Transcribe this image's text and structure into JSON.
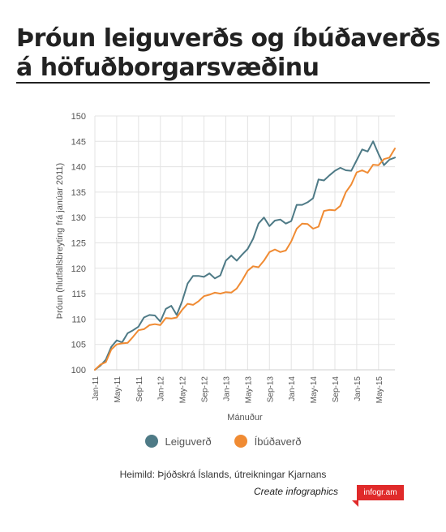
{
  "title": {
    "line1": "Þróun leiguverðs og íbúðaverðs",
    "line2": "á höfuðborgarsvæðinu"
  },
  "chart_data": {
    "type": "line",
    "xlabel": "Mánuður",
    "ylabel": "Þróun (hlutfallsbreyting frá janúar 2011)",
    "ylim": [
      100,
      150
    ],
    "yticks": [
      "100",
      "105",
      "110",
      "115",
      "120",
      "125",
      "130",
      "135",
      "140",
      "145",
      "150"
    ],
    "xticks": [
      {
        "index": 0,
        "label": "Jan-11"
      },
      {
        "index": 4,
        "label": "May-11"
      },
      {
        "index": 8,
        "label": "Sep-11"
      },
      {
        "index": 12,
        "label": "Jan-12"
      },
      {
        "index": 16,
        "label": "May-12"
      },
      {
        "index": 20,
        "label": "Sep-12"
      },
      {
        "index": 24,
        "label": "Jan-13"
      },
      {
        "index": 28,
        "label": "May-13"
      },
      {
        "index": 32,
        "label": "Sep-13"
      },
      {
        "index": 36,
        "label": "Jan-14"
      },
      {
        "index": 40,
        "label": "May-14"
      },
      {
        "index": 44,
        "label": "Sep-14"
      },
      {
        "index": 48,
        "label": "Jan-15"
      },
      {
        "index": 52,
        "label": "May-15"
      }
    ],
    "grid": true,
    "legend_position": "bottom",
    "series": [
      {
        "name": "Leiguverð",
        "color": "#4e7a86",
        "values": [
          100.0,
          100.8,
          102.0,
          104.5,
          105.8,
          105.4,
          107.2,
          107.8,
          108.5,
          110.3,
          110.8,
          110.7,
          109.5,
          112.0,
          112.6,
          110.8,
          113.5,
          117.0,
          118.5,
          118.5,
          118.3,
          119.0,
          118.0,
          118.6,
          121.5,
          122.5,
          121.5,
          122.7,
          123.8,
          125.8,
          128.8,
          130.0,
          128.3,
          129.4,
          129.6,
          128.8,
          129.3,
          132.5,
          132.5,
          133.0,
          133.8,
          137.5,
          137.3,
          138.3,
          139.2,
          139.8,
          139.3,
          139.2,
          141.3,
          143.4,
          143.0,
          145.0,
          142.5,
          140.3,
          141.4,
          141.8
        ]
      },
      {
        "name": "Íbúðaverð",
        "color": "#f08b33",
        "values": [
          100.0,
          101.0,
          101.5,
          104.0,
          105.0,
          105.2,
          105.3,
          106.5,
          107.8,
          108.0,
          108.8,
          109.0,
          108.8,
          110.2,
          110.1,
          110.3,
          111.8,
          113.0,
          112.8,
          113.5,
          114.5,
          114.8,
          115.2,
          115.0,
          115.3,
          115.2,
          116.0,
          117.6,
          119.5,
          120.4,
          120.2,
          121.5,
          123.2,
          123.7,
          123.2,
          123.5,
          125.3,
          127.8,
          128.8,
          128.7,
          127.8,
          128.2,
          131.3,
          131.5,
          131.4,
          132.3,
          135.0,
          136.5,
          138.9,
          139.3,
          138.8,
          140.4,
          140.3,
          141.5,
          141.8,
          143.6
        ]
      }
    ]
  },
  "legend": {
    "item1": "Leiguverð",
    "item2": "Íbúðaverð"
  },
  "source": "Heimild: Þjóðskrá Íslands, útreikningar Kjarnans",
  "footer": {
    "create": "Create infographics",
    "badge": "infogr.am"
  }
}
